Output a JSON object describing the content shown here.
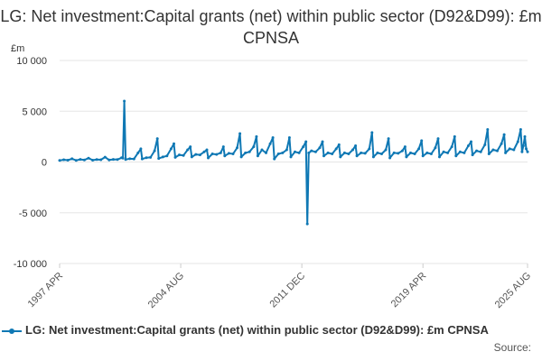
{
  "chart_data": {
    "type": "line",
    "title": "LG: Net investment:Capital grants (net) within public sector (D92&D99): £m CPNSA",
    "ylabel": "£m",
    "ylim": [
      -10000,
      10000
    ],
    "yticks": [
      10000,
      5000,
      0,
      -5000,
      -10000
    ],
    "ytick_labels": [
      "10 000",
      "5 000",
      "0",
      "-5 000",
      "-10 000"
    ],
    "xticks": [
      {
        "label": "1997 APR",
        "date": "1997-04"
      },
      {
        "label": "2004 AUG",
        "date": "2004-08"
      },
      {
        "label": "2011 DEC",
        "date": "2011-12"
      },
      {
        "label": "2019 APR",
        "date": "2019-04"
      },
      {
        "label": "2025 AUG",
        "date": "2025-08"
      }
    ],
    "x_range": [
      "1997-04",
      "2025-08"
    ],
    "grid": true,
    "legend_position": "bottom",
    "series": [
      {
        "name": "LG: Net investment:Capital grants (net) within public sector (D92&D99): £m CPNSA",
        "color": "#0f78b4",
        "points": [
          [
            "1997-04",
            150
          ],
          [
            "1997-07",
            220
          ],
          [
            "1997-10",
            180
          ],
          [
            "1998-01",
            320
          ],
          [
            "1998-04",
            160
          ],
          [
            "1998-07",
            260
          ],
          [
            "1998-10",
            200
          ],
          [
            "1999-01",
            380
          ],
          [
            "1999-04",
            180
          ],
          [
            "1999-07",
            240
          ],
          [
            "1999-10",
            220
          ],
          [
            "2000-01",
            480
          ],
          [
            "2000-04",
            200
          ],
          [
            "2000-07",
            260
          ],
          [
            "2000-10",
            240
          ],
          [
            "2001-01",
            420
          ],
          [
            "2001-02",
            380
          ],
          [
            "2001-03",
            6000
          ],
          [
            "2001-04",
            250
          ],
          [
            "2001-07",
            320
          ],
          [
            "2001-10",
            300
          ],
          [
            "2002-01",
            900
          ],
          [
            "2002-03",
            1300
          ],
          [
            "2002-04",
            300
          ],
          [
            "2002-07",
            420
          ],
          [
            "2002-10",
            450
          ],
          [
            "2003-01",
            1100
          ],
          [
            "2003-03",
            2300
          ],
          [
            "2003-04",
            350
          ],
          [
            "2003-07",
            500
          ],
          [
            "2003-10",
            600
          ],
          [
            "2004-01",
            1300
          ],
          [
            "2004-03",
            1800
          ],
          [
            "2004-04",
            450
          ],
          [
            "2004-07",
            700
          ],
          [
            "2004-10",
            650
          ],
          [
            "2005-01",
            1200
          ],
          [
            "2005-03",
            1500
          ],
          [
            "2005-04",
            500
          ],
          [
            "2005-07",
            750
          ],
          [
            "2005-10",
            700
          ],
          [
            "2006-01",
            1000
          ],
          [
            "2006-03",
            1200
          ],
          [
            "2006-04",
            400
          ],
          [
            "2006-07",
            800
          ],
          [
            "2006-10",
            750
          ],
          [
            "2007-01",
            900
          ],
          [
            "2007-03",
            1500
          ],
          [
            "2007-04",
            600
          ],
          [
            "2007-07",
            850
          ],
          [
            "2007-10",
            800
          ],
          [
            "2008-01",
            1400
          ],
          [
            "2008-03",
            2800
          ],
          [
            "2008-04",
            500
          ],
          [
            "2008-07",
            900
          ],
          [
            "2008-10",
            1000
          ],
          [
            "2009-01",
            1500
          ],
          [
            "2009-03",
            2500
          ],
          [
            "2009-04",
            600
          ],
          [
            "2009-07",
            1200
          ],
          [
            "2009-10",
            900
          ],
          [
            "2010-01",
            1800
          ],
          [
            "2010-03",
            2400
          ],
          [
            "2010-04",
            300
          ],
          [
            "2010-07",
            800
          ],
          [
            "2010-10",
            900
          ],
          [
            "2011-01",
            1200
          ],
          [
            "2011-03",
            2400
          ],
          [
            "2011-04",
            500
          ],
          [
            "2011-07",
            1000
          ],
          [
            "2011-10",
            900
          ],
          [
            "2012-01",
            1500
          ],
          [
            "2012-03",
            2000
          ],
          [
            "2012-04",
            -6100
          ],
          [
            "2012-05",
            900
          ],
          [
            "2012-07",
            1100
          ],
          [
            "2012-10",
            1000
          ],
          [
            "2013-01",
            1400
          ],
          [
            "2013-03",
            2000
          ],
          [
            "2013-04",
            600
          ],
          [
            "2013-07",
            900
          ],
          [
            "2013-10",
            800
          ],
          [
            "2014-01",
            1300
          ],
          [
            "2014-03",
            1700
          ],
          [
            "2014-04",
            500
          ],
          [
            "2014-07",
            900
          ],
          [
            "2014-10",
            800
          ],
          [
            "2015-01",
            1200
          ],
          [
            "2015-03",
            1600
          ],
          [
            "2015-04",
            600
          ],
          [
            "2015-07",
            900
          ],
          [
            "2015-10",
            850
          ],
          [
            "2016-01",
            1300
          ],
          [
            "2016-03",
            2900
          ],
          [
            "2016-04",
            500
          ],
          [
            "2016-07",
            900
          ],
          [
            "2016-10",
            800
          ],
          [
            "2017-01",
            1200
          ],
          [
            "2017-03",
            2300
          ],
          [
            "2017-04",
            400
          ],
          [
            "2017-07",
            900
          ],
          [
            "2017-10",
            850
          ],
          [
            "2018-01",
            1100
          ],
          [
            "2018-03",
            1500
          ],
          [
            "2018-04",
            500
          ],
          [
            "2018-07",
            900
          ],
          [
            "2018-10",
            800
          ],
          [
            "2019-01",
            1300
          ],
          [
            "2019-03",
            2100
          ],
          [
            "2019-04",
            600
          ],
          [
            "2019-07",
            900
          ],
          [
            "2019-10",
            800
          ],
          [
            "2020-01",
            1400
          ],
          [
            "2020-03",
            2300
          ],
          [
            "2020-04",
            500
          ],
          [
            "2020-07",
            1000
          ],
          [
            "2020-10",
            900
          ],
          [
            "2021-01",
            1500
          ],
          [
            "2021-03",
            2500
          ],
          [
            "2021-04",
            600
          ],
          [
            "2021-07",
            1000
          ],
          [
            "2021-10",
            900
          ],
          [
            "2022-01",
            1600
          ],
          [
            "2022-03",
            2000
          ],
          [
            "2022-04",
            700
          ],
          [
            "2022-07",
            1100
          ],
          [
            "2022-10",
            1000
          ],
          [
            "2023-01",
            1700
          ],
          [
            "2023-03",
            3200
          ],
          [
            "2023-04",
            800
          ],
          [
            "2023-07",
            1200
          ],
          [
            "2023-10",
            1100
          ],
          [
            "2024-01",
            1800
          ],
          [
            "2024-03",
            2700
          ],
          [
            "2024-04",
            900
          ],
          [
            "2024-07",
            1300
          ],
          [
            "2024-10",
            1200
          ],
          [
            "2025-01",
            2000
          ],
          [
            "2025-03",
            3200
          ],
          [
            "2025-04",
            1000
          ],
          [
            "2025-05",
            1600
          ],
          [
            "2025-06",
            2500
          ],
          [
            "2025-07",
            1300
          ],
          [
            "2025-08",
            1000
          ]
        ]
      }
    ]
  },
  "legend": {
    "label": "LG: Net investment:Capital grants (net) within public sector (D92&D99): £m CPNSA"
  },
  "source_label": "Source:"
}
